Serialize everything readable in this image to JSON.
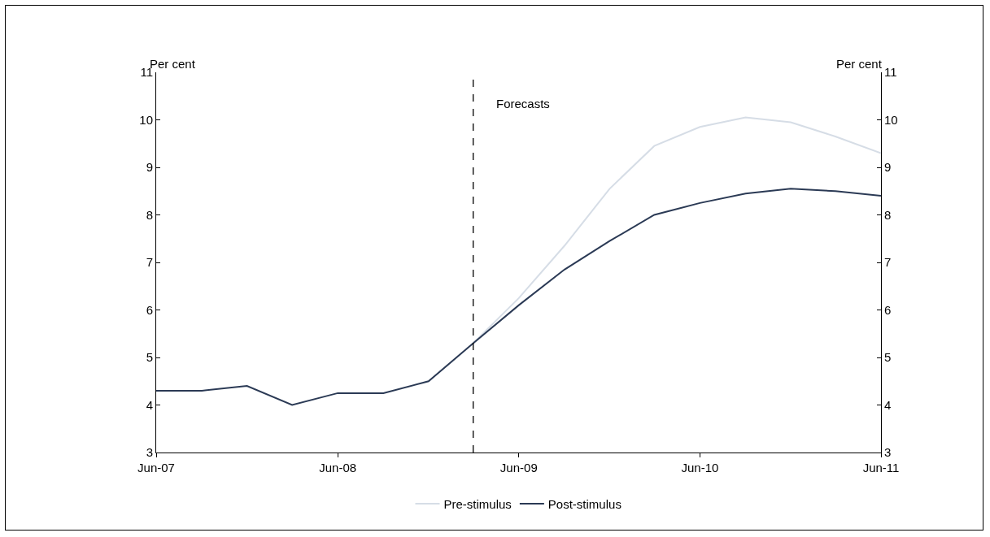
{
  "chart_data": {
    "type": "line",
    "ylabel": "Per cent",
    "y2label": "Per cent",
    "x": [
      "2007-06",
      "2007-09",
      "2007-12",
      "2008-03",
      "2008-06",
      "2008-09",
      "2008-12",
      "2009-03",
      "2009-06",
      "2009-09",
      "2009-12",
      "2010-03",
      "2010-06",
      "2010-09",
      "2010-12",
      "2011-03",
      "2011-06"
    ],
    "series": [
      {
        "name": "Pre-stimulus",
        "color": "#d6dde6",
        "values": [
          null,
          null,
          null,
          null,
          null,
          null,
          null,
          5.3,
          6.25,
          7.35,
          8.55,
          9.45,
          9.85,
          10.05,
          9.95,
          9.65,
          9.3
        ]
      },
      {
        "name": "Post-stimulus",
        "color": "#2b3a55",
        "values": [
          4.3,
          4.3,
          4.4,
          4.0,
          4.25,
          4.25,
          4.5,
          5.3,
          6.1,
          6.85,
          7.45,
          8.0,
          8.25,
          8.45,
          8.55,
          8.5,
          8.4
        ]
      }
    ],
    "xlim": [
      "2007-06",
      "2011-06"
    ],
    "xticks": [
      {
        "value": "2007-06",
        "label": "Jun-07"
      },
      {
        "value": "2008-06",
        "label": "Jun-08"
      },
      {
        "value": "2009-06",
        "label": "Jun-09"
      },
      {
        "value": "2010-06",
        "label": "Jun-10"
      },
      {
        "value": "2011-06",
        "label": "Jun-11"
      }
    ],
    "ylim": [
      3,
      11
    ],
    "yticks": [
      3,
      4,
      5,
      6,
      7,
      8,
      9,
      10,
      11
    ],
    "y2lim": [
      3,
      11
    ],
    "y2ticks": [
      3,
      4,
      5,
      6,
      7,
      8,
      9,
      10,
      11
    ],
    "ref_lines": [
      {
        "axis": "x",
        "value": "2009-03",
        "color": "#000000",
        "line_style": "dashed"
      }
    ],
    "annotations": [
      {
        "text": "Forecasts",
        "x": "2009-03",
        "y": 10.35
      }
    ],
    "grid": false,
    "legend": "bottom",
    "marker": "none",
    "line_style": "solid"
  }
}
